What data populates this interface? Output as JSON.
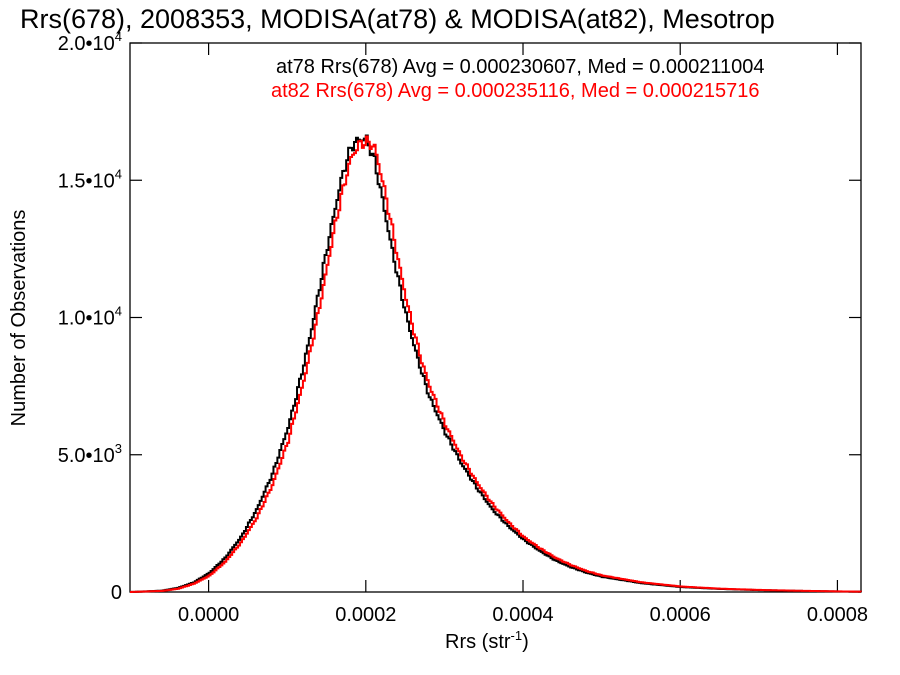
{
  "chart_data": {
    "type": "line",
    "title": "Rrs(678), 2008353, MODISA(at78) & MODISA(at82), Mesotrop",
    "xlabel": "Rrs (str",
    "xlabel_sup": "-1",
    "xlabel_close": ")",
    "ylabel": "Number of Observations",
    "xlim": [
      -0.0001,
      0.00083
    ],
    "ylim": [
      0,
      20000
    ],
    "grid": false,
    "x_ticks": [
      {
        "value": 0.0,
        "label": "0.0000"
      },
      {
        "value": 0.0002,
        "label": "0.0002"
      },
      {
        "value": 0.0004,
        "label": "0.0004"
      },
      {
        "value": 0.0006,
        "label": "0.0006"
      },
      {
        "value": 0.0008,
        "label": "0.0008"
      }
    ],
    "y_ticks": [
      {
        "value": 0,
        "mant": "0",
        "exp": ""
      },
      {
        "value": 5000,
        "mant": "5.0•10",
        "exp": "3"
      },
      {
        "value": 10000,
        "mant": "1.0•10",
        "exp": "4"
      },
      {
        "value": 15000,
        "mant": "1.5•10",
        "exp": "4"
      },
      {
        "value": 20000,
        "mant": "2.0•10",
        "exp": "4"
      }
    ],
    "annotations": [
      {
        "text": "at78 Rrs(678) Avg = 0.000230607, Med = 0.000211004",
        "color": "#000000"
      },
      {
        "text": "at82 Rrs(678) Avg = 0.000235116, Med = 0.000215716",
        "color": "#ff0000"
      }
    ],
    "series": [
      {
        "color": "#000000",
        "x": [
          -0.0001,
          -6e-05,
          -4e-05,
          -2e-05,
          0.0,
          2e-05,
          4e-05,
          6e-05,
          8e-05,
          0.0001,
          0.00011,
          0.00012,
          0.00013,
          0.00014,
          0.00015,
          0.00016,
          0.00017,
          0.00018,
          0.00019,
          0.0002,
          0.00021,
          0.00022,
          0.00023,
          0.00024,
          0.00025,
          0.00026,
          0.00027,
          0.00028,
          0.0003,
          0.00032,
          0.00034,
          0.00036,
          0.00038,
          0.0004,
          0.00042,
          0.00044,
          0.00046,
          0.00048,
          0.0005,
          0.00055,
          0.0006,
          0.00065,
          0.0007,
          0.00075,
          0.0008,
          0.00083
        ],
        "y": [
          0,
          50,
          150,
          350,
          700,
          1250,
          2000,
          3000,
          4300,
          6000,
          7100,
          8300,
          9600,
          11100,
          12600,
          14000,
          15300,
          16200,
          16500,
          16500,
          15700,
          14300,
          12800,
          11400,
          10100,
          9000,
          8000,
          7100,
          5800,
          4700,
          3800,
          3000,
          2400,
          1900,
          1500,
          1150,
          900,
          700,
          550,
          320,
          180,
          110,
          70,
          40,
          20,
          10
        ]
      },
      {
        "color": "#ff0000",
        "x": [
          -0.0001,
          -6e-05,
          -4e-05,
          -2e-05,
          0.0,
          2e-05,
          4e-05,
          6e-05,
          8e-05,
          0.0001,
          0.00011,
          0.00012,
          0.00013,
          0.00014,
          0.00015,
          0.00016,
          0.00017,
          0.00018,
          0.00019,
          0.0002,
          0.00021,
          0.00022,
          0.00023,
          0.00024,
          0.00025,
          0.00026,
          0.00027,
          0.00028,
          0.0003,
          0.00032,
          0.00034,
          0.00036,
          0.00038,
          0.0004,
          0.00042,
          0.00044,
          0.00046,
          0.00048,
          0.0005,
          0.00055,
          0.0006,
          0.00065,
          0.0007,
          0.00075,
          0.0008,
          0.00083
        ],
        "y": [
          0,
          40,
          120,
          300,
          600,
          1100,
          1800,
          2700,
          3900,
          5500,
          6600,
          7700,
          9000,
          10400,
          11900,
          13400,
          14700,
          15800,
          16300,
          16400,
          16200,
          15000,
          13600,
          12100,
          10700,
          9500,
          8400,
          7500,
          6100,
          4950,
          4000,
          3200,
          2550,
          2000,
          1600,
          1250,
          980,
          760,
          600,
          350,
          200,
          120,
          75,
          45,
          22,
          12
        ]
      }
    ]
  }
}
